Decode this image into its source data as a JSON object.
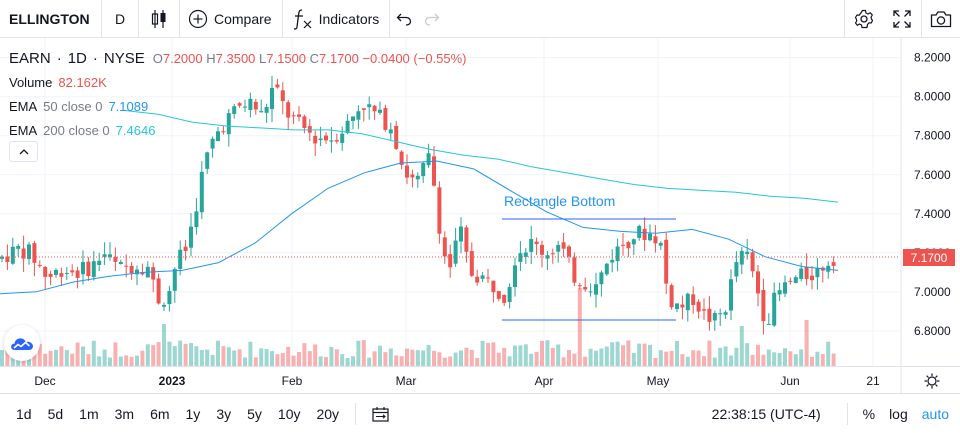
{
  "toolbar": {
    "symbol": "ELLINGTON",
    "interval": "D",
    "compare_label": "Compare",
    "indicators_label": "Indicators",
    "icons": [
      "candles-icon",
      "plus-circle-icon",
      "fx-icon",
      "undo-icon",
      "redo-icon",
      "gear-icon",
      "fullscreen-icon",
      "camera-icon"
    ]
  },
  "legend": {
    "symbol": "EARN",
    "interval": "1D",
    "exchange": "NYSE",
    "open_label": "O",
    "open": "7.2000",
    "high_label": "H",
    "high": "7.3500",
    "low_label": "L",
    "low": "7.1500",
    "close_label": "C",
    "close": "7.1700",
    "change": "−0.0400 (−0.55%)",
    "volume_label": "Volume",
    "volume": "82.162K",
    "ema50_label": "EMA",
    "ema50_params": "50 close 0",
    "ema50_value": "7.1089",
    "ema200_label": "EMA",
    "ema200_params": "200 close 0",
    "ema200_value": "7.4646"
  },
  "chart": {
    "annotation": "Rectangle Bottom",
    "last_price": "7.1700"
  },
  "time_axis": {
    "labels": [
      "Dec",
      "2023",
      "Feb",
      "Mar",
      "Apr",
      "May",
      "Jun",
      "21"
    ]
  },
  "bottom": {
    "ranges": [
      "1d",
      "5d",
      "1m",
      "3m",
      "6m",
      "1y",
      "3y",
      "5y",
      "10y",
      "20y"
    ],
    "clock": "22:38:15 (UTC-4)",
    "percent_label": "%",
    "log_label": "log",
    "auto_label": "auto"
  },
  "colors": {
    "up": "#26a69a",
    "down": "#ef5350",
    "ema50": "#2196f3",
    "ema200": "#26c6da",
    "accent": "#2196f3"
  },
  "chart_data": {
    "type": "candlestick",
    "symbol": "EARN",
    "y_ticks": [
      "6.8000",
      "7.0000",
      "7.2000",
      "7.4000",
      "7.6000",
      "7.8000",
      "8.0000",
      "8.2000"
    ],
    "ylim": [
      6.62,
      8.27
    ],
    "x_labels": [
      "Dec",
      "2023",
      "Feb",
      "Mar",
      "Apr",
      "May",
      "Jun",
      "21"
    ],
    "grid": true,
    "last_price": 7.17,
    "series": [
      {
        "name": "EMA 50 close 0",
        "kind": "line",
        "color": "#2196f3",
        "values": [
          6.99,
          7.0,
          7.05,
          7.08,
          7.1,
          7.11,
          7.15,
          7.25,
          7.4,
          7.53,
          7.61,
          7.66,
          7.67,
          7.63,
          7.52,
          7.41,
          7.33,
          7.31,
          7.3,
          7.32,
          7.27,
          7.18,
          7.13,
          7.11
        ]
      },
      {
        "name": "EMA 200 close 0",
        "kind": "line",
        "color": "#26c6da",
        "values": [
          7.93,
          7.91,
          7.87,
          7.85,
          7.84,
          7.83,
          7.83,
          7.81,
          7.77,
          7.73,
          7.7,
          7.68,
          7.64,
          7.61,
          7.58,
          7.55,
          7.53,
          7.52,
          7.51,
          7.49,
          7.48,
          7.46
        ]
      }
    ],
    "annotations": [
      {
        "label": "Rectangle Bottom",
        "top": 7.37,
        "bottom": 6.84,
        "from": "Mar 24",
        "to": "May 10"
      }
    ]
  }
}
